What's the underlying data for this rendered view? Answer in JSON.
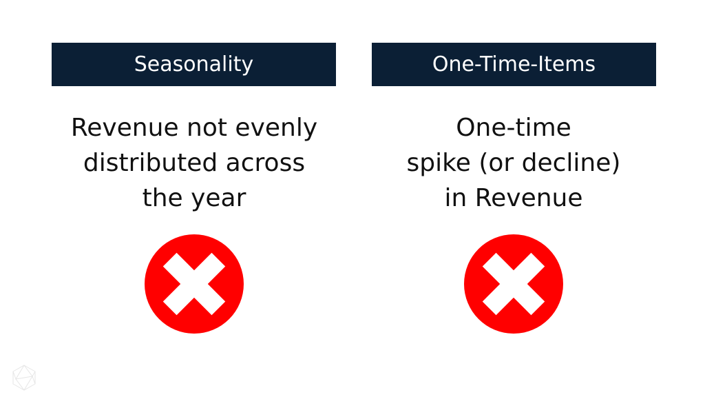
{
  "columns": [
    {
      "header": "Seasonality",
      "lines": [
        "Revenue not evenly",
        "distributed across",
        "the year"
      ],
      "icon": "x-circle-icon"
    },
    {
      "header": "One-Time-Items",
      "lines": [
        "One-time",
        "spike (or decline)",
        "in Revenue"
      ],
      "icon": "x-circle-icon"
    }
  ],
  "colors": {
    "header_bg": "#0b1f35",
    "icon_red": "#ff0000"
  },
  "logo": "icosahedron-logo-icon"
}
